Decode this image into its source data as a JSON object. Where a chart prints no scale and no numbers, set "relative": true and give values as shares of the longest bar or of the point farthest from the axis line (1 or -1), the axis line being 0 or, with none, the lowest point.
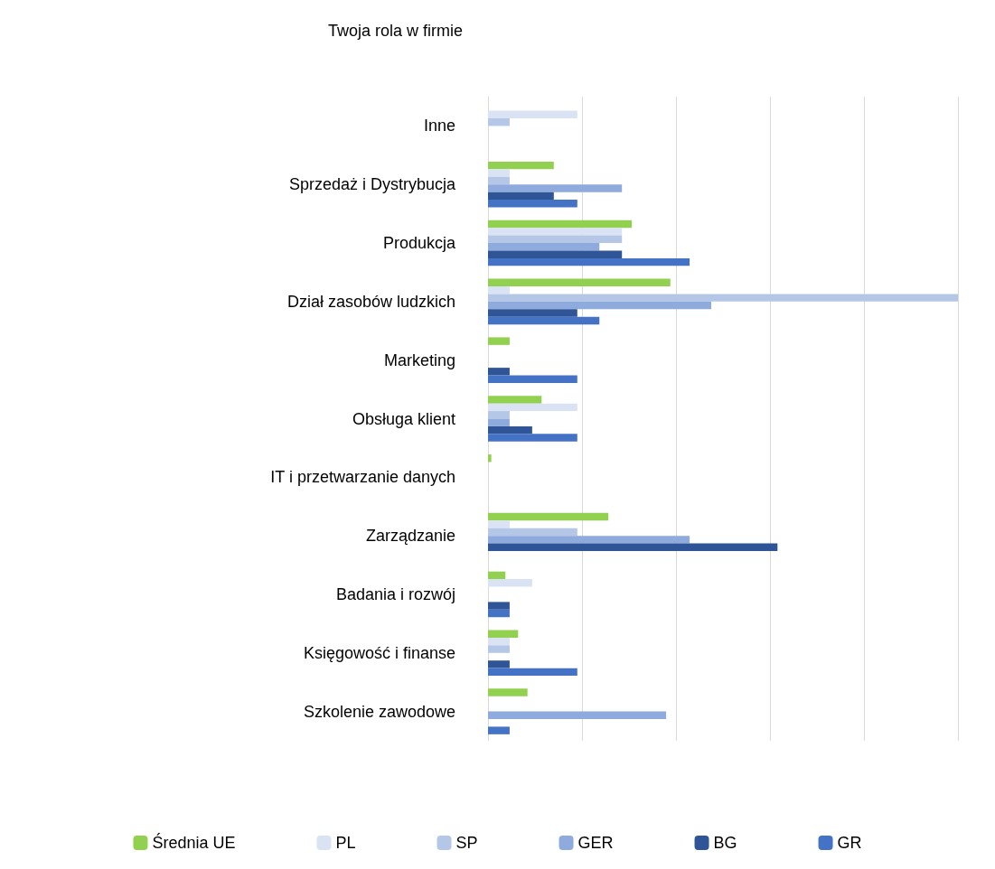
{
  "chart_data": {
    "type": "bar",
    "orientation": "horizontal",
    "relative": true,
    "title": "Twoja rola w firmie",
    "categories": [
      "Inne",
      "Sprzedaż i Dystrybucja",
      "Produkcja",
      "Dział zasobów ludzkich",
      "Marketing",
      "Obsługa klient",
      "IT i przetwarzanie danych",
      "Zarządzanie",
      "Badania i rozwój",
      "Księgowość i finanse",
      "Szkolenie zawodowe"
    ],
    "series": [
      {
        "name": "Średnia UE",
        "color": "#92d050",
        "values": [
          null,
          0.14,
          0.306,
          0.388,
          0.046,
          0.114,
          0.007,
          0.256,
          0.037,
          0.064,
          0.084
        ]
      },
      {
        "name": "PL",
        "color": "#dae3f3",
        "values": [
          0.19,
          0.046,
          0.285,
          0.046,
          null,
          0.19,
          null,
          0.046,
          0.094,
          0.046,
          null
        ]
      },
      {
        "name": "SP",
        "color": "#b4c7e7",
        "values": [
          0.046,
          0.046,
          0.285,
          1,
          null,
          0.046,
          null,
          0.19,
          null,
          0.046,
          null
        ]
      },
      {
        "name": "GER",
        "color": "#8faadc",
        "values": [
          null,
          0.285,
          0.237,
          0.475,
          null,
          0.046,
          null,
          0.429,
          null,
          null,
          0.379
        ]
      },
      {
        "name": "BG",
        "color": "#2f5597",
        "values": [
          null,
          0.14,
          0.285,
          0.19,
          0.046,
          0.094,
          null,
          0.616,
          0.046,
          0.046,
          null
        ]
      },
      {
        "name": "GR",
        "color": "#4472c4",
        "values": [
          null,
          0.19,
          0.429,
          0.237,
          0.19,
          0.19,
          null,
          null,
          0.046,
          0.19,
          0.046
        ]
      }
    ],
    "grid": "x",
    "legend": "bottom"
  }
}
